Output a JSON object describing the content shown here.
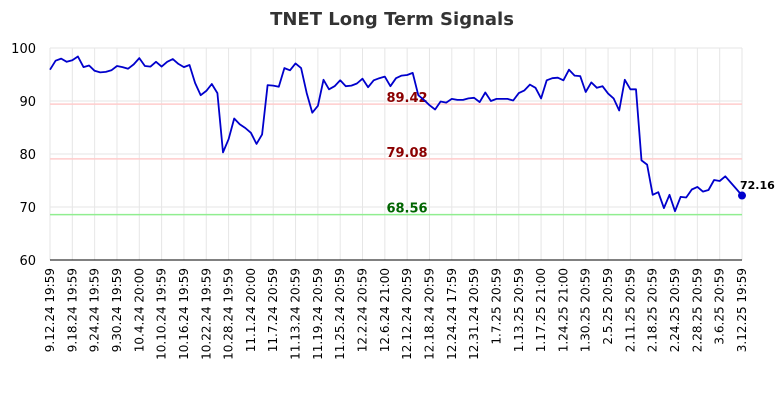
{
  "chart_data": {
    "type": "line",
    "title": "TNET Long Term Signals",
    "ylim": [
      60,
      100
    ],
    "yticks": [
      60,
      70,
      80,
      90,
      100
    ],
    "grid": true,
    "x_ticks": [
      "9.12.24 19:59",
      "9.18.24 19:59",
      "9.24.24 19:59",
      "9.30.24 19:59",
      "10.4.24 20:00",
      "10.10.24 19:59",
      "10.16.24 19:59",
      "10.22.24 19:59",
      "10.28.24 19:59",
      "11.1.24 20:00",
      "11.7.24 20:59",
      "11.13.24 20:59",
      "11.19.24 20:59",
      "11.25.24 20:59",
      "12.2.24 20:59",
      "12.6.24 21:00",
      "12.12.24 20:59",
      "12.18.24 20:59",
      "12.24.24 17:59",
      "12.31.24 20:59",
      "1.7.25 20:59",
      "1.13.25 20:59",
      "1.17.25 21:00",
      "1.24.25 21:00",
      "1.30.25 20:59",
      "2.5.25 20:59",
      "2.11.25 20:59",
      "2.18.25 20:59",
      "2.24.25 20:59",
      "2.28.25 20:59",
      "3.6.25 20:59",
      "3.12.25 19:59"
    ],
    "levels": [
      {
        "value": 89.42,
        "label": "89.42",
        "line_color": "#ffcccc",
        "text_color": "#8b0000"
      },
      {
        "value": 79.08,
        "label": "79.08",
        "line_color": "#ffcccc",
        "text_color": "#8b0000"
      },
      {
        "value": 68.56,
        "label": "68.56",
        "line_color": "#90ee90",
        "text_color": "#006400"
      }
    ],
    "series": [
      {
        "color": "#0000cc",
        "values": [
          95.9,
          97.6,
          98.0,
          97.4,
          97.7,
          98.4,
          96.4,
          96.7,
          95.7,
          95.4,
          95.5,
          95.8,
          96.6,
          96.4,
          96.1,
          96.9,
          98.1,
          96.6,
          96.5,
          97.4,
          96.5,
          97.4,
          97.9,
          97.0,
          96.4,
          96.8,
          93.4,
          91.1,
          91.9,
          93.2,
          91.5,
          80.3,
          82.8,
          86.7,
          85.6,
          84.9,
          84.0,
          81.9,
          83.7,
          93.0,
          92.9,
          92.7,
          96.2,
          95.8,
          97.1,
          96.2,
          91.5,
          87.8,
          89.1,
          94.0,
          92.2,
          92.8,
          93.9,
          92.8,
          92.9,
          93.3,
          94.2,
          92.6,
          93.9,
          94.3,
          94.6,
          92.8,
          94.3,
          94.8,
          94.9,
          95.3,
          91.1,
          90.2,
          89.2,
          88.4,
          89.9,
          89.7,
          90.4,
          90.2,
          90.2,
          90.5,
          90.6,
          89.8,
          91.6,
          90.0,
          90.4,
          90.4,
          90.4,
          90.1,
          91.5,
          92.0,
          93.1,
          92.5,
          90.5,
          93.9,
          94.3,
          94.4,
          93.9,
          95.9,
          94.8,
          94.7,
          91.7,
          93.5,
          92.5,
          92.8,
          91.4,
          90.5,
          88.2,
          94.0,
          92.2,
          92.2,
          78.8,
          78.0,
          72.3,
          72.8,
          69.8,
          72.3,
          69.2,
          71.9,
          71.8,
          73.3,
          73.8,
          72.9,
          73.2,
          75.1,
          74.9,
          75.8,
          74.6,
          73.4,
          72.16
        ]
      }
    ],
    "last_value_label": "72.16"
  }
}
